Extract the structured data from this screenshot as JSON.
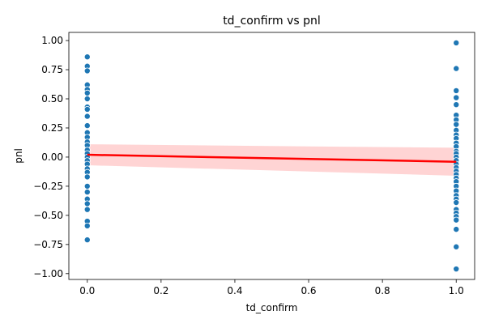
{
  "chart_data": {
    "type": "scatter",
    "title": "td_confirm vs pnl",
    "xlabel": "td_confirm",
    "ylabel": "pnl",
    "xlim": [
      -0.05,
      1.05
    ],
    "ylim": [
      -1.05,
      1.07
    ],
    "xticks": [
      0.0,
      0.2,
      0.4,
      0.6,
      0.8,
      1.0
    ],
    "xtick_labels": [
      "0.0",
      "0.2",
      "0.4",
      "0.6",
      "0.8",
      "1.0"
    ],
    "yticks": [
      -1.0,
      -0.75,
      -0.5,
      -0.25,
      0.0,
      0.25,
      0.5,
      0.75,
      1.0
    ],
    "ytick_labels": [
      "−1.00",
      "−0.75",
      "−0.50",
      "−0.25",
      "0.00",
      "0.25",
      "0.50",
      "0.75",
      "1.00"
    ],
    "grid": false,
    "colors": {
      "points": "#1f77b4",
      "regression_line": "#ff0000",
      "confidence_band": "#ffcccc"
    },
    "points": [
      {
        "x": 0,
        "y": 0.86
      },
      {
        "x": 0,
        "y": 0.78
      },
      {
        "x": 0,
        "y": 0.74
      },
      {
        "x": 0,
        "y": 0.62
      },
      {
        "x": 0,
        "y": 0.58
      },
      {
        "x": 0,
        "y": 0.55
      },
      {
        "x": 0,
        "y": 0.5
      },
      {
        "x": 0,
        "y": 0.43
      },
      {
        "x": 0,
        "y": 0.41
      },
      {
        "x": 0,
        "y": 0.35
      },
      {
        "x": 0,
        "y": 0.27
      },
      {
        "x": 0,
        "y": 0.21
      },
      {
        "x": 0,
        "y": 0.17
      },
      {
        "x": 0,
        "y": 0.13
      },
      {
        "x": 0,
        "y": 0.1
      },
      {
        "x": 0,
        "y": 0.06
      },
      {
        "x": 0,
        "y": 0.03
      },
      {
        "x": 0,
        "y": 0.0
      },
      {
        "x": 0,
        "y": -0.03
      },
      {
        "x": 0,
        "y": -0.06
      },
      {
        "x": 0,
        "y": -0.1
      },
      {
        "x": 0,
        "y": -0.13
      },
      {
        "x": 0,
        "y": -0.17
      },
      {
        "x": 0,
        "y": -0.25
      },
      {
        "x": 0,
        "y": -0.3
      },
      {
        "x": 0,
        "y": -0.36
      },
      {
        "x": 0,
        "y": -0.4
      },
      {
        "x": 0,
        "y": -0.45
      },
      {
        "x": 0,
        "y": -0.55
      },
      {
        "x": 0,
        "y": -0.59
      },
      {
        "x": 0,
        "y": -0.71
      },
      {
        "x": 1,
        "y": 0.98
      },
      {
        "x": 1,
        "y": 0.76
      },
      {
        "x": 1,
        "y": 0.57
      },
      {
        "x": 1,
        "y": 0.51
      },
      {
        "x": 1,
        "y": 0.45
      },
      {
        "x": 1,
        "y": 0.36
      },
      {
        "x": 1,
        "y": 0.32
      },
      {
        "x": 1,
        "y": 0.28
      },
      {
        "x": 1,
        "y": 0.23
      },
      {
        "x": 1,
        "y": 0.19
      },
      {
        "x": 1,
        "y": 0.16
      },
      {
        "x": 1,
        "y": 0.12
      },
      {
        "x": 1,
        "y": 0.09
      },
      {
        "x": 1,
        "y": 0.05
      },
      {
        "x": 1,
        "y": 0.03
      },
      {
        "x": 1,
        "y": 0.0
      },
      {
        "x": 1,
        "y": -0.03
      },
      {
        "x": 1,
        "y": -0.06
      },
      {
        "x": 1,
        "y": -0.09
      },
      {
        "x": 1,
        "y": -0.12
      },
      {
        "x": 1,
        "y": -0.15
      },
      {
        "x": 1,
        "y": -0.18
      },
      {
        "x": 1,
        "y": -0.21
      },
      {
        "x": 1,
        "y": -0.25
      },
      {
        "x": 1,
        "y": -0.29
      },
      {
        "x": 1,
        "y": -0.33
      },
      {
        "x": 1,
        "y": -0.36
      },
      {
        "x": 1,
        "y": -0.39
      },
      {
        "x": 1,
        "y": -0.45
      },
      {
        "x": 1,
        "y": -0.48
      },
      {
        "x": 1,
        "y": -0.51
      },
      {
        "x": 1,
        "y": -0.54
      },
      {
        "x": 1,
        "y": -0.62
      },
      {
        "x": 1,
        "y": -0.77
      },
      {
        "x": 1,
        "y": -0.96
      }
    ],
    "regression": {
      "x": [
        0,
        1
      ],
      "y": [
        0.02,
        -0.04
      ]
    },
    "confidence_band": {
      "x": [
        0,
        1
      ],
      "upper": [
        0.11,
        0.08
      ],
      "lower": [
        -0.07,
        -0.16
      ]
    }
  }
}
